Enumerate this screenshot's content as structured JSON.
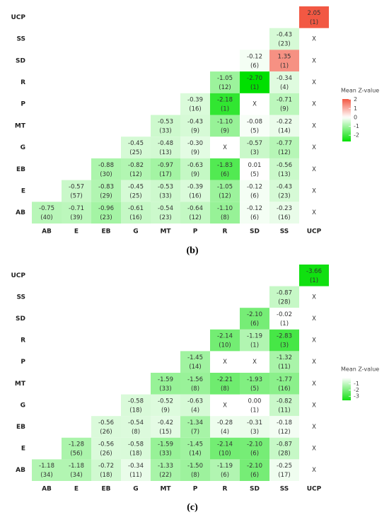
{
  "chart_data": [
    {
      "type": "heatmap",
      "label": "(b)",
      "legend_title": "Mean Z-value",
      "x_categories": [
        "AB",
        "E",
        "EB",
        "G",
        "MT",
        "P",
        "R",
        "SD",
        "SS",
        "UCP"
      ],
      "y_categories": [
        "UCP",
        "SS",
        "SD",
        "R",
        "P",
        "MT",
        "G",
        "EB",
        "E",
        "AB"
      ],
      "values": [
        [
          null,
          null,
          null,
          null,
          null,
          null,
          null,
          null,
          null,
          2.05
        ],
        [
          null,
          null,
          null,
          null,
          null,
          null,
          null,
          null,
          -0.43,
          null
        ],
        [
          null,
          null,
          null,
          null,
          null,
          null,
          null,
          -0.12,
          1.35,
          null
        ],
        [
          null,
          null,
          null,
          null,
          null,
          null,
          -1.05,
          -2.7,
          -0.34,
          null
        ],
        [
          null,
          null,
          null,
          null,
          null,
          -0.39,
          -2.18,
          null,
          -0.71,
          null
        ],
        [
          null,
          null,
          null,
          null,
          -0.53,
          -0.43,
          -1.1,
          -0.08,
          -0.22,
          null
        ],
        [
          null,
          null,
          null,
          -0.45,
          -0.48,
          -0.3,
          null,
          -0.57,
          -0.77,
          null
        ],
        [
          null,
          null,
          -0.88,
          -0.82,
          -0.97,
          -0.63,
          -1.83,
          0.01,
          -0.56,
          null
        ],
        [
          null,
          -0.57,
          -0.83,
          -0.45,
          -0.53,
          -0.39,
          -1.05,
          -0.12,
          -0.43,
          null
        ],
        [
          -0.75,
          -0.71,
          -0.96,
          -0.61,
          -0.54,
          -0.64,
          -1.1,
          -0.12,
          -0.23,
          null
        ]
      ],
      "value_labels": [
        [
          null,
          null,
          null,
          null,
          null,
          null,
          null,
          null,
          null,
          "2.05"
        ],
        [
          null,
          null,
          null,
          null,
          null,
          null,
          null,
          null,
          "-0.43",
          "X"
        ],
        [
          null,
          null,
          null,
          null,
          null,
          null,
          null,
          "-0.12",
          "1.35",
          "X"
        ],
        [
          null,
          null,
          null,
          null,
          null,
          null,
          "-1.05",
          "-2.70",
          "-0.34",
          "X"
        ],
        [
          null,
          null,
          null,
          null,
          null,
          "-0.39",
          "-2.18",
          "X",
          "-0.71",
          "X"
        ],
        [
          null,
          null,
          null,
          null,
          "-0.53",
          "-0.43",
          "-1.10",
          "-0.08",
          "-0.22",
          "X"
        ],
        [
          null,
          null,
          null,
          "-0.45",
          "-0.48",
          "-0.30",
          "X",
          "-0.57",
          "-0.77",
          "X"
        ],
        [
          null,
          null,
          "-0.88",
          "-0.82",
          "-0.97",
          "-0.63",
          "-1.83",
          "0.01",
          "-0.56",
          "X"
        ],
        [
          null,
          "-0.57",
          "-0.83",
          "-0.45",
          "-0.53",
          "-0.39",
          "-1.05",
          "-0.12",
          "-0.43",
          "X"
        ],
        [
          "-0.75",
          "-0.71",
          "-0.96",
          "-0.61",
          "-0.54",
          "-0.64",
          "-1.10",
          "-0.12",
          "-0.23",
          "X"
        ]
      ],
      "counts": [
        [
          null,
          null,
          null,
          null,
          null,
          null,
          null,
          null,
          null,
          1
        ],
        [
          null,
          null,
          null,
          null,
          null,
          null,
          null,
          null,
          23,
          null
        ],
        [
          null,
          null,
          null,
          null,
          null,
          null,
          null,
          6,
          1,
          null
        ],
        [
          null,
          null,
          null,
          null,
          null,
          null,
          12,
          1,
          4,
          null
        ],
        [
          null,
          null,
          null,
          null,
          null,
          16,
          1,
          null,
          9,
          null
        ],
        [
          null,
          null,
          null,
          null,
          33,
          9,
          9,
          5,
          14,
          null
        ],
        [
          null,
          null,
          null,
          25,
          13,
          9,
          null,
          3,
          12,
          null
        ],
        [
          null,
          null,
          30,
          12,
          17,
          9,
          6,
          5,
          13,
          null
        ],
        [
          null,
          57,
          29,
          25,
          33,
          16,
          12,
          6,
          23,
          null
        ],
        [
          40,
          39,
          23,
          16,
          23,
          12,
          8,
          6,
          16,
          null
        ]
      ],
      "count_labels": [
        [
          null,
          null,
          null,
          null,
          null,
          null,
          null,
          null,
          null,
          "(1)"
        ],
        [
          null,
          null,
          null,
          null,
          null,
          null,
          null,
          null,
          "(23)",
          null
        ],
        [
          null,
          null,
          null,
          null,
          null,
          null,
          null,
          "(6)",
          "(1)",
          null
        ],
        [
          null,
          null,
          null,
          null,
          null,
          null,
          "(12)",
          "(1)",
          "(4)",
          null
        ],
        [
          null,
          null,
          null,
          null,
          null,
          "(16)",
          "(1)",
          null,
          "(9)",
          null
        ],
        [
          null,
          null,
          null,
          null,
          "(33)",
          "(9)",
          "(9)",
          "(5)",
          "(14)",
          null
        ],
        [
          null,
          null,
          null,
          "(25)",
          "(13)",
          "(9)",
          null,
          "(3)",
          "(12)",
          null
        ],
        [
          null,
          null,
          "(30)",
          "(12)",
          "(17)",
          "(9)",
          "(6)",
          "(5)",
          "(13)",
          null
        ],
        [
          null,
          "(57)",
          "(29)",
          "(25)",
          "(33)",
          "(16)",
          "(12)",
          "(6)",
          "(23)",
          null
        ],
        [
          "(40)",
          "(39)",
          "(23)",
          "(16)",
          "(23)",
          "(12)",
          "(8)",
          "(6)",
          "(16)",
          null
        ]
      ],
      "colorlim": [
        -2.7,
        2.05
      ],
      "color_midpoint": 0,
      "colors": {
        "low": "#00e000",
        "mid": "#ffffff",
        "high": "#f25843"
      },
      "colorbar_ticks": [
        2,
        1,
        0,
        -1,
        -2
      ]
    },
    {
      "type": "heatmap",
      "label": "(c)",
      "legend_title": "Mean Z-value",
      "x_categories": [
        "AB",
        "E",
        "EB",
        "G",
        "MT",
        "P",
        "R",
        "SD",
        "SS",
        "UCP"
      ],
      "y_categories": [
        "UCP",
        "SS",
        "SD",
        "R",
        "P",
        "MT",
        "G",
        "EB",
        "E",
        "AB"
      ],
      "values": [
        [
          null,
          null,
          null,
          null,
          null,
          null,
          null,
          null,
          null,
          -3.66
        ],
        [
          null,
          null,
          null,
          null,
          null,
          null,
          null,
          null,
          -0.87,
          null
        ],
        [
          null,
          null,
          null,
          null,
          null,
          null,
          null,
          -2.1,
          -0.02,
          null
        ],
        [
          null,
          null,
          null,
          null,
          null,
          null,
          -2.14,
          -1.19,
          -2.83,
          null
        ],
        [
          null,
          null,
          null,
          null,
          null,
          -1.45,
          null,
          null,
          -1.32,
          null
        ],
        [
          null,
          null,
          null,
          null,
          -1.59,
          -1.56,
          -2.21,
          -1.93,
          -1.77,
          null
        ],
        [
          null,
          null,
          null,
          -0.58,
          -0.52,
          -0.63,
          null,
          0.0,
          -0.82,
          null
        ],
        [
          null,
          null,
          -0.56,
          -0.54,
          -0.42,
          -1.34,
          -0.28,
          -0.31,
          -0.18,
          null
        ],
        [
          null,
          -1.28,
          -0.56,
          -0.58,
          -1.59,
          -1.45,
          -2.14,
          -2.1,
          -0.87,
          null
        ],
        [
          -1.18,
          -1.18,
          -0.72,
          -0.34,
          -1.33,
          -1.5,
          -1.19,
          -2.1,
          -0.25,
          null
        ]
      ],
      "value_labels": [
        [
          null,
          null,
          null,
          null,
          null,
          null,
          null,
          null,
          null,
          "-3.66"
        ],
        [
          null,
          null,
          null,
          null,
          null,
          null,
          null,
          null,
          "-0.87",
          "X"
        ],
        [
          null,
          null,
          null,
          null,
          null,
          null,
          null,
          "-2.10",
          "-0.02",
          "X"
        ],
        [
          null,
          null,
          null,
          null,
          null,
          null,
          "-2.14",
          "-1.19",
          "-2.83",
          "X"
        ],
        [
          null,
          null,
          null,
          null,
          null,
          "-1.45",
          "X",
          "X",
          "-1.32",
          "X"
        ],
        [
          null,
          null,
          null,
          null,
          "-1.59",
          "-1.56",
          "-2.21",
          "-1.93",
          "-1.77",
          "X"
        ],
        [
          null,
          null,
          null,
          "-0.58",
          "-0.52",
          "-0.63",
          "X",
          "0.00",
          "-0.82",
          "X"
        ],
        [
          null,
          null,
          "-0.56",
          "-0.54",
          "-0.42",
          "-1.34",
          "-0.28",
          "-0.31",
          "-0.18",
          "X"
        ],
        [
          null,
          "-1.28",
          "-0.56",
          "-0.58",
          "-1.59",
          "-1.45",
          "-2.14",
          "-2.10",
          "-0.87",
          "X"
        ],
        [
          "-1.18",
          "-1.18",
          "-0.72",
          "-0.34",
          "-1.33",
          "-1.50",
          "-1.19",
          "-2.10",
          "-0.25",
          "X"
        ]
      ],
      "counts": [
        [
          null,
          null,
          null,
          null,
          null,
          null,
          null,
          null,
          null,
          1
        ],
        [
          null,
          null,
          null,
          null,
          null,
          null,
          null,
          null,
          28,
          null
        ],
        [
          null,
          null,
          null,
          null,
          null,
          null,
          null,
          6,
          1,
          null
        ],
        [
          null,
          null,
          null,
          null,
          null,
          null,
          10,
          1,
          3,
          null
        ],
        [
          null,
          null,
          null,
          null,
          null,
          14,
          null,
          null,
          11,
          null
        ],
        [
          null,
          null,
          null,
          null,
          33,
          8,
          8,
          5,
          16,
          null
        ],
        [
          null,
          null,
          null,
          18,
          9,
          4,
          null,
          1,
          11,
          null
        ],
        [
          null,
          null,
          26,
          8,
          15,
          7,
          4,
          3,
          12,
          null
        ],
        [
          null,
          56,
          26,
          18,
          33,
          14,
          10,
          6,
          28,
          null
        ],
        [
          34,
          34,
          18,
          11,
          22,
          8,
          6,
          6,
          17,
          null
        ]
      ],
      "count_labels": [
        [
          null,
          null,
          null,
          null,
          null,
          null,
          null,
          null,
          null,
          "(1)"
        ],
        [
          null,
          null,
          null,
          null,
          null,
          null,
          null,
          null,
          "(28)",
          null
        ],
        [
          null,
          null,
          null,
          null,
          null,
          null,
          null,
          "(6)",
          "(1)",
          null
        ],
        [
          null,
          null,
          null,
          null,
          null,
          null,
          "(10)",
          "(1)",
          "(3)",
          null
        ],
        [
          null,
          null,
          null,
          null,
          null,
          "(14)",
          null,
          null,
          "(11)",
          null
        ],
        [
          null,
          null,
          null,
          null,
          "(33)",
          "(8)",
          "(8)",
          "(5)",
          "(16)",
          null
        ],
        [
          null,
          null,
          null,
          "(18)",
          "(9)",
          "(4)",
          null,
          "(1)",
          "(11)",
          null
        ],
        [
          null,
          null,
          "(26)",
          "(8)",
          "(15)",
          "(7)",
          "(4)",
          "(3)",
          "(12)",
          null
        ],
        [
          null,
          "(56)",
          "(26)",
          "(18)",
          "(33)",
          "(14)",
          "(10)",
          "(6)",
          "(28)",
          null
        ],
        [
          "(34)",
          "(34)",
          "(18)",
          "(11)",
          "(22)",
          "(8)",
          "(6)",
          "(6)",
          "(17)",
          null
        ]
      ],
      "colorlim": [
        -3.66,
        0
      ],
      "colors": {
        "low": "#10e010",
        "high": "#ffffff"
      },
      "colorbar_ticks": [
        -1,
        -2,
        -3
      ]
    }
  ]
}
